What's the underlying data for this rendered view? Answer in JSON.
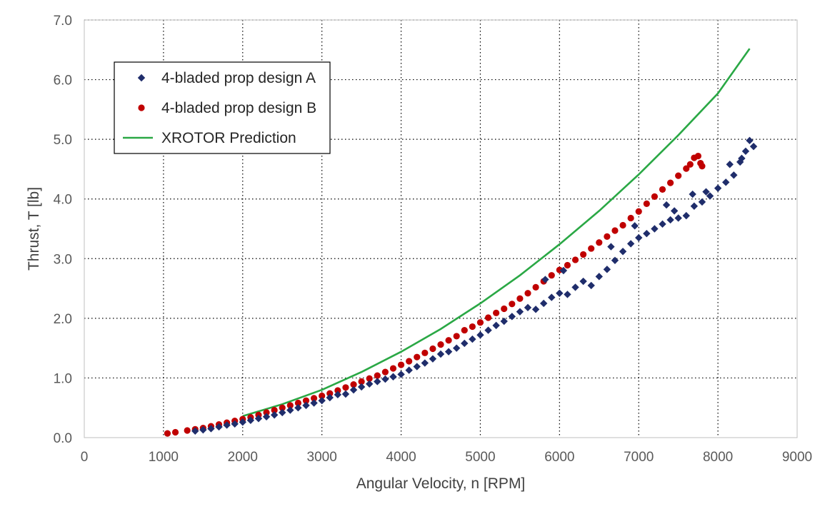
{
  "chart_data": {
    "type": "scatter",
    "title": "",
    "xlabel": "Angular  Velocity, n [RPM]",
    "ylabel": "Thrust, T [lb]",
    "xlim": [
      0,
      9000
    ],
    "ylim": [
      0,
      7
    ],
    "x_ticks": [
      "0",
      "1000",
      "2000",
      "3000",
      "4000",
      "5000",
      "6000",
      "7000",
      "8000",
      "9000"
    ],
    "y_ticks": [
      "0.0",
      "1.0",
      "2.0",
      "3.0",
      "4.0",
      "5.0",
      "6.0",
      "7.0"
    ],
    "grid": true,
    "legend_position": "top-left",
    "series": [
      {
        "name": "4-bladed prop design A",
        "kind": "scatter",
        "marker": "diamond",
        "color": "#1f2d6b",
        "points": [
          [
            1400,
            0.11
          ],
          [
            1500,
            0.13
          ],
          [
            1600,
            0.15
          ],
          [
            1700,
            0.18
          ],
          [
            1800,
            0.21
          ],
          [
            1900,
            0.23
          ],
          [
            2000,
            0.26
          ],
          [
            2100,
            0.29
          ],
          [
            2200,
            0.32
          ],
          [
            2300,
            0.35
          ],
          [
            2400,
            0.38
          ],
          [
            2500,
            0.42
          ],
          [
            2600,
            0.46
          ],
          [
            2700,
            0.5
          ],
          [
            2800,
            0.54
          ],
          [
            2900,
            0.58
          ],
          [
            3000,
            0.62
          ],
          [
            3100,
            0.67
          ],
          [
            3200,
            0.72
          ],
          [
            3300,
            0.73
          ],
          [
            3400,
            0.8
          ],
          [
            3500,
            0.85
          ],
          [
            3600,
            0.9
          ],
          [
            3700,
            0.94
          ],
          [
            3800,
            0.98
          ],
          [
            3900,
            1.02
          ],
          [
            4000,
            1.06
          ],
          [
            4100,
            1.13
          ],
          [
            4200,
            1.19
          ],
          [
            4300,
            1.25
          ],
          [
            4400,
            1.32
          ],
          [
            4500,
            1.4
          ],
          [
            4600,
            1.44
          ],
          [
            4700,
            1.5
          ],
          [
            4800,
            1.58
          ],
          [
            4900,
            1.65
          ],
          [
            5000,
            1.72
          ],
          [
            5100,
            1.8
          ],
          [
            5200,
            1.88
          ],
          [
            5300,
            1.95
          ],
          [
            5400,
            2.03
          ],
          [
            5500,
            2.11
          ],
          [
            5600,
            2.18
          ],
          [
            5700,
            2.15
          ],
          [
            5800,
            2.25
          ],
          [
            5900,
            2.35
          ],
          [
            6000,
            2.42
          ],
          [
            6100,
            2.4
          ],
          [
            6200,
            2.52
          ],
          [
            6300,
            2.62
          ],
          [
            6400,
            2.55
          ],
          [
            6500,
            2.7
          ],
          [
            6600,
            2.82
          ],
          [
            6700,
            2.97
          ],
          [
            6800,
            3.12
          ],
          [
            6900,
            3.25
          ],
          [
            7000,
            3.35
          ],
          [
            7100,
            3.42
          ],
          [
            7200,
            3.5
          ],
          [
            7300,
            3.58
          ],
          [
            7400,
            3.65
          ],
          [
            7500,
            3.68
          ],
          [
            7600,
            3.72
          ],
          [
            7700,
            3.88
          ],
          [
            7800,
            3.95
          ],
          [
            7900,
            4.05
          ],
          [
            8000,
            4.18
          ],
          [
            8100,
            4.28
          ],
          [
            8200,
            4.4
          ],
          [
            8300,
            4.68
          ],
          [
            8350,
            4.8
          ],
          [
            8400,
            4.98
          ],
          [
            8450,
            4.88
          ],
          [
            5820,
            2.65
          ],
          [
            6050,
            2.8
          ],
          [
            6650,
            3.2
          ],
          [
            6950,
            3.55
          ],
          [
            7350,
            3.9
          ],
          [
            7450,
            3.8
          ],
          [
            7680,
            4.08
          ],
          [
            7850,
            4.12
          ],
          [
            8150,
            4.58
          ],
          [
            8280,
            4.62
          ]
        ]
      },
      {
        "name": "4-bladed prop design B",
        "kind": "scatter",
        "marker": "circle",
        "color": "#c00000",
        "points": [
          [
            1050,
            0.07
          ],
          [
            1150,
            0.09
          ],
          [
            1300,
            0.12
          ],
          [
            1400,
            0.14
          ],
          [
            1500,
            0.16
          ],
          [
            1600,
            0.19
          ],
          [
            1700,
            0.22
          ],
          [
            1800,
            0.25
          ],
          [
            1900,
            0.28
          ],
          [
            2000,
            0.31
          ],
          [
            2100,
            0.34
          ],
          [
            2200,
            0.38
          ],
          [
            2300,
            0.42
          ],
          [
            2400,
            0.46
          ],
          [
            2500,
            0.5
          ],
          [
            2600,
            0.54
          ],
          [
            2700,
            0.58
          ],
          [
            2800,
            0.62
          ],
          [
            2900,
            0.66
          ],
          [
            3000,
            0.7
          ],
          [
            3100,
            0.74
          ],
          [
            3200,
            0.79
          ],
          [
            3300,
            0.84
          ],
          [
            3400,
            0.89
          ],
          [
            3500,
            0.94
          ],
          [
            3600,
            0.99
          ],
          [
            3700,
            1.04
          ],
          [
            3800,
            1.1
          ],
          [
            3900,
            1.16
          ],
          [
            4000,
            1.22
          ],
          [
            4100,
            1.28
          ],
          [
            4200,
            1.35
          ],
          [
            4300,
            1.42
          ],
          [
            4400,
            1.49
          ],
          [
            4500,
            1.56
          ],
          [
            4600,
            1.63
          ],
          [
            4700,
            1.7
          ],
          [
            4800,
            1.8
          ],
          [
            4900,
            1.86
          ],
          [
            5000,
            1.93
          ],
          [
            5100,
            2.01
          ],
          [
            5200,
            2.09
          ],
          [
            5300,
            2.16
          ],
          [
            5400,
            2.24
          ],
          [
            5500,
            2.33
          ],
          [
            5600,
            2.42
          ],
          [
            5700,
            2.52
          ],
          [
            5800,
            2.62
          ],
          [
            5900,
            2.72
          ],
          [
            6000,
            2.81
          ],
          [
            6100,
            2.89
          ],
          [
            6200,
            2.98
          ],
          [
            6300,
            3.07
          ],
          [
            6400,
            3.17
          ],
          [
            6500,
            3.27
          ],
          [
            6600,
            3.37
          ],
          [
            6700,
            3.47
          ],
          [
            6800,
            3.56
          ],
          [
            6900,
            3.68
          ],
          [
            7000,
            3.79
          ],
          [
            7100,
            3.92
          ],
          [
            7200,
            4.04
          ],
          [
            7300,
            4.16
          ],
          [
            7400,
            4.27
          ],
          [
            7500,
            4.39
          ],
          [
            7600,
            4.51
          ],
          [
            7650,
            4.58
          ],
          [
            7700,
            4.69
          ],
          [
            7750,
            4.72
          ],
          [
            7780,
            4.6
          ],
          [
            7800,
            4.55
          ]
        ]
      },
      {
        "name": "XROTOR Prediction",
        "kind": "line",
        "color": "#2aa845",
        "points": [
          [
            2000,
            0.36
          ],
          [
            2500,
            0.56
          ],
          [
            3000,
            0.8
          ],
          [
            3500,
            1.1
          ],
          [
            4000,
            1.44
          ],
          [
            4500,
            1.82
          ],
          [
            5000,
            2.25
          ],
          [
            5500,
            2.72
          ],
          [
            6000,
            3.24
          ],
          [
            6500,
            3.8
          ],
          [
            7000,
            4.41
          ],
          [
            7500,
            5.07
          ],
          [
            8000,
            5.77
          ],
          [
            8400,
            6.52
          ]
        ]
      }
    ]
  }
}
